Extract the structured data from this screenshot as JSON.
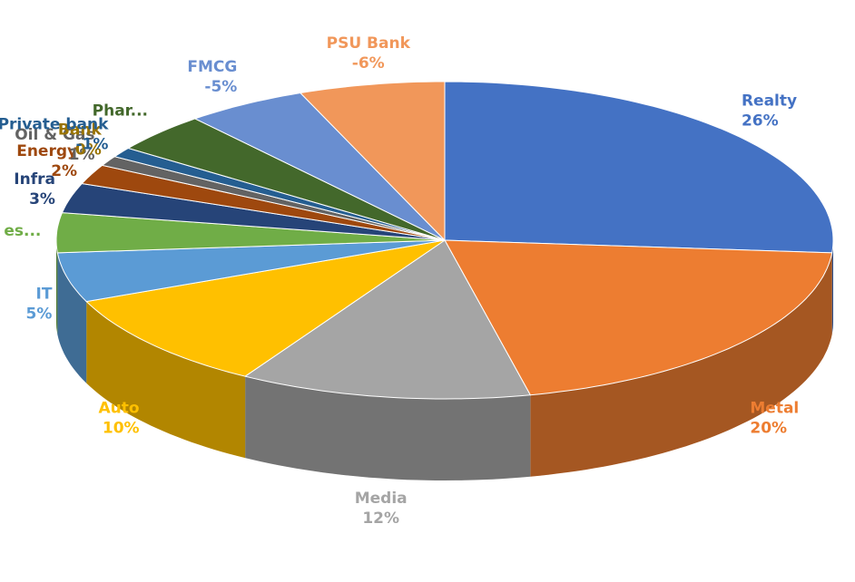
{
  "chart_data": {
    "type": "pie3d",
    "categories": [
      "Realty",
      "Metal",
      "Media",
      "Auto",
      "IT",
      "Sevic es...",
      "Infra",
      "Energy",
      "Oil & Gas",
      "Bank",
      "Private bank",
      "Phar...",
      "FMCG",
      "PSU Bank"
    ],
    "values": [
      26,
      20,
      12,
      10,
      5,
      4,
      3,
      2,
      1,
      0,
      -1,
      -4,
      -5,
      -6
    ],
    "value_labels": [
      "26%",
      "20%",
      "12%",
      "10%",
      "5%",
      null,
      "3%",
      "2%",
      "1%",
      "0%",
      "-1%",
      null,
      "-5%",
      "-6%"
    ],
    "colors": [
      "#4472c4",
      "#ed7d31",
      "#a5a5a5",
      "#ffc000",
      "#5b9bd5",
      "#70ad47",
      "#264478",
      "#9e480e",
      "#636363",
      "#997300",
      "#255e91",
      "#43682b",
      "#698ed0",
      "#f1975a"
    ]
  }
}
